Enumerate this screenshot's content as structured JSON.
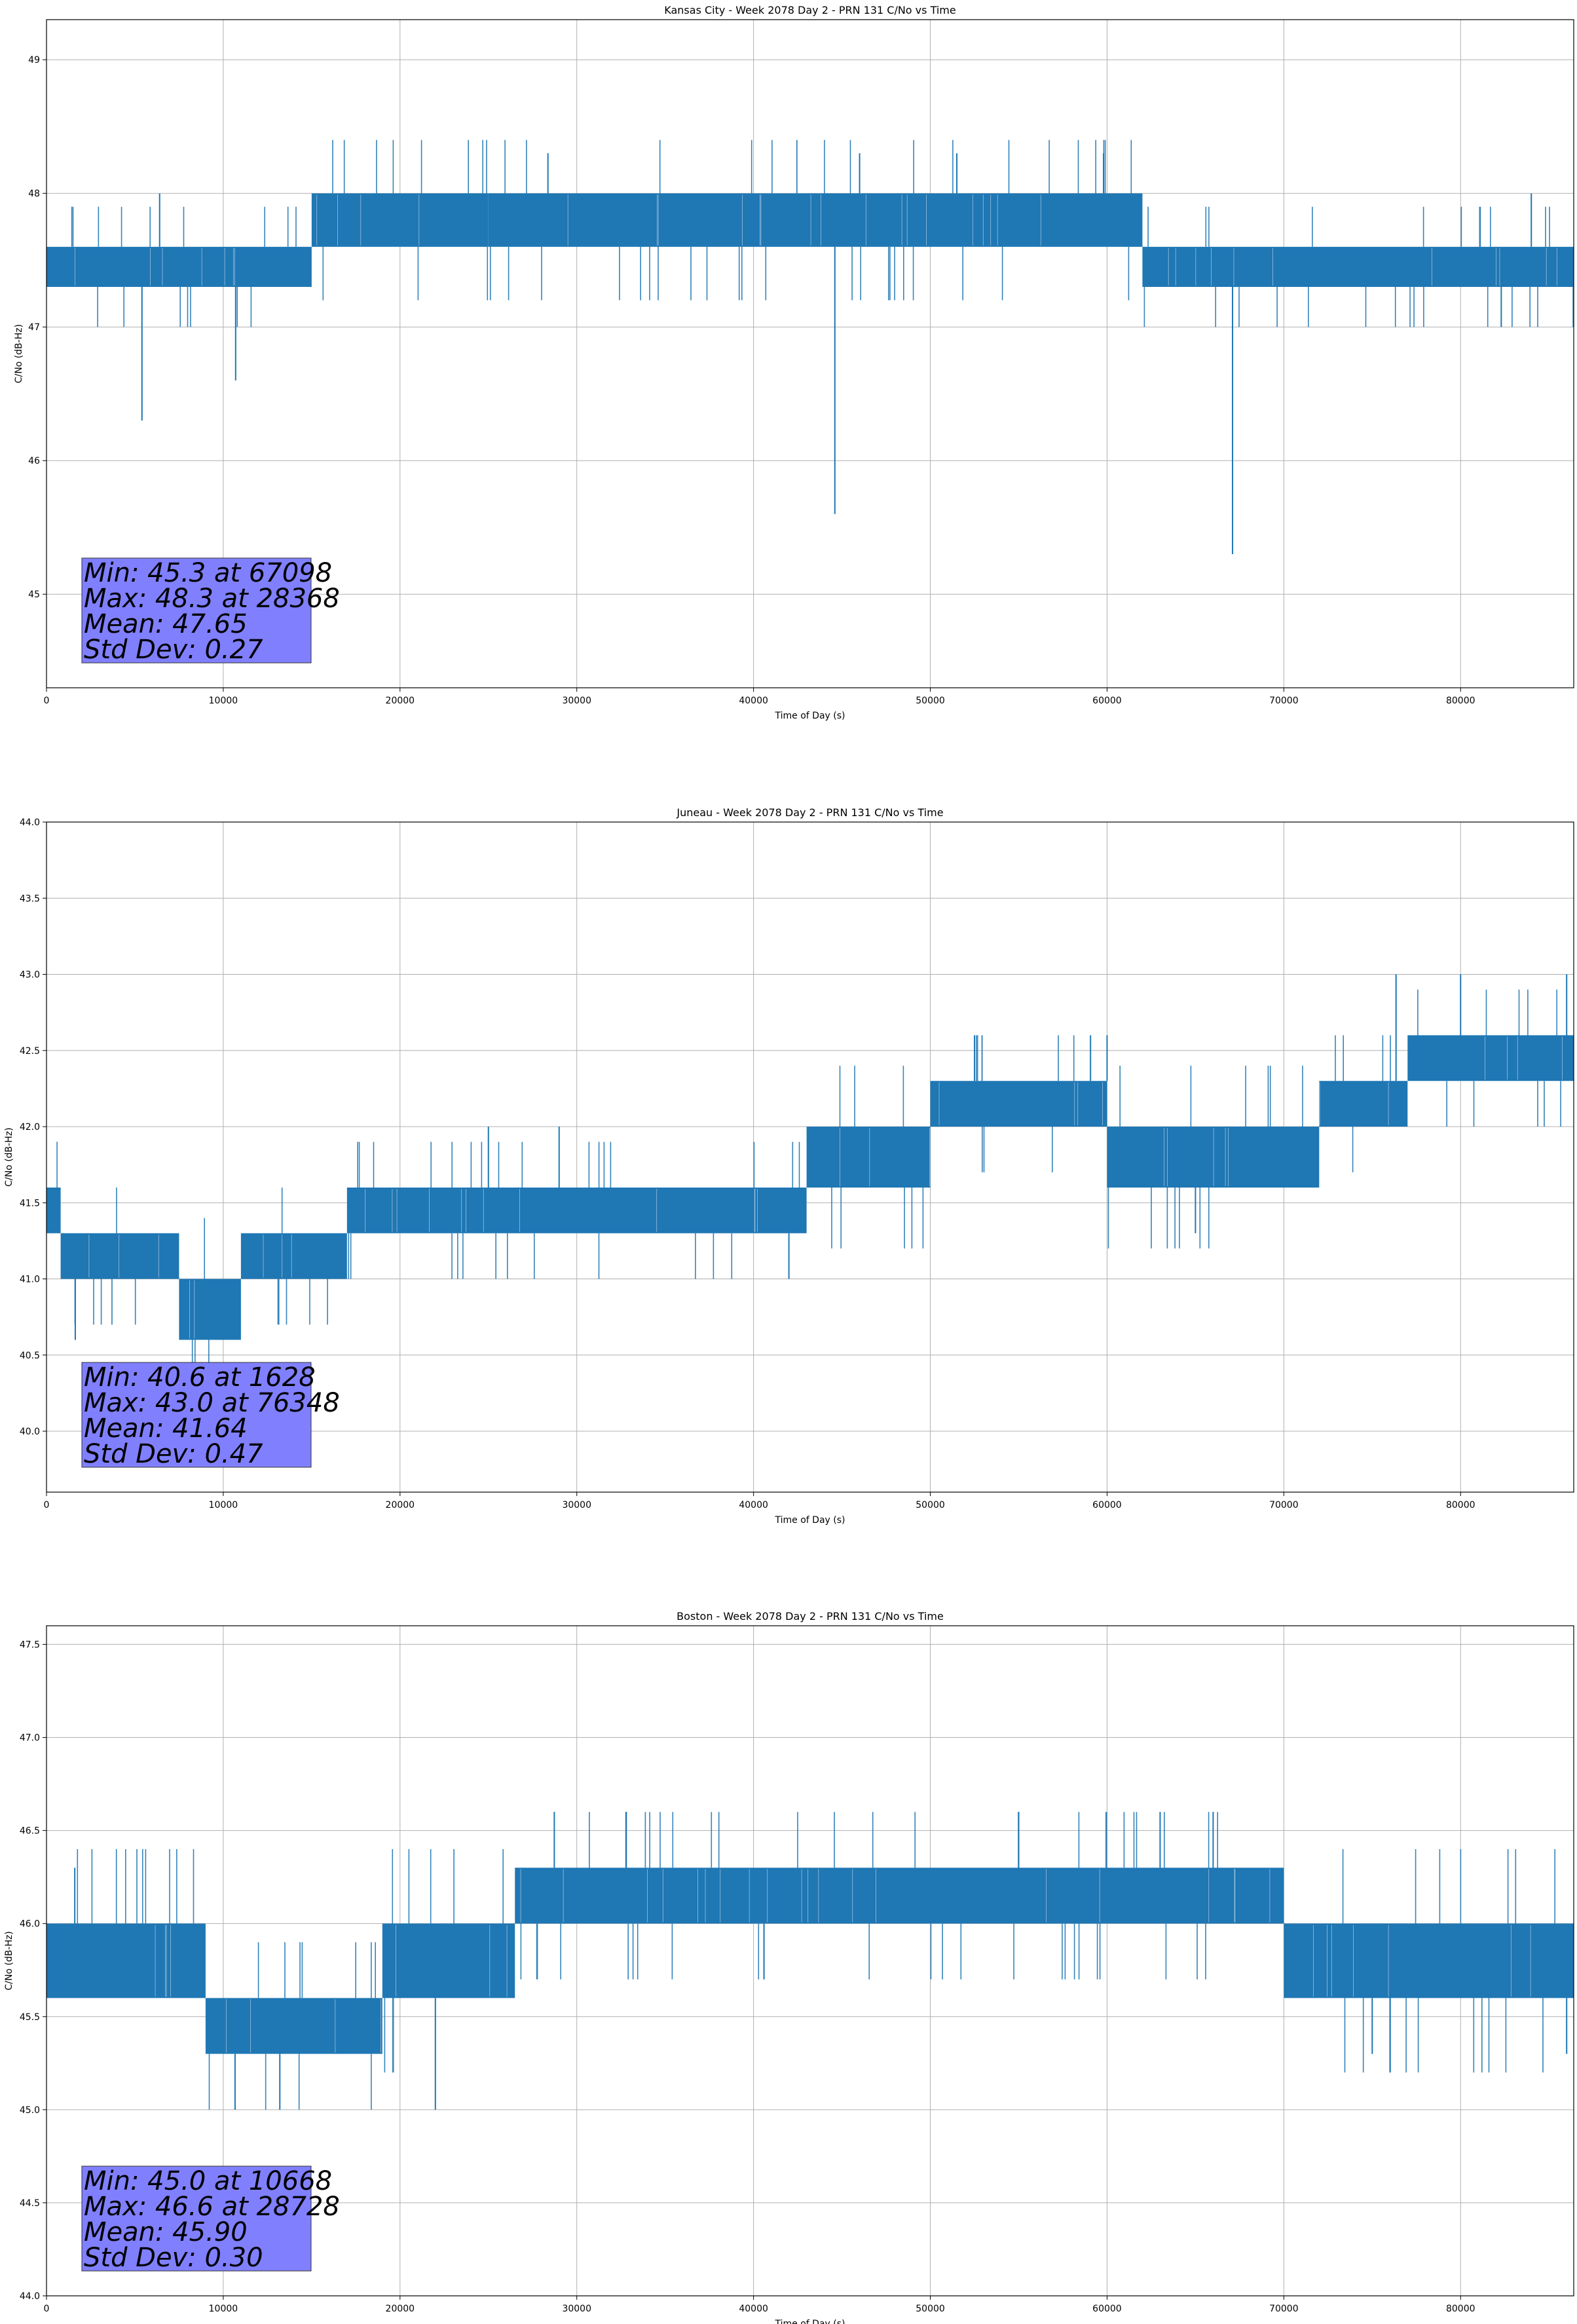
{
  "chart_data": [
    {
      "type": "line",
      "title": "Kansas City - Week 2078 Day 2 - PRN 131 C/No vs Time",
      "xlabel": "Time of Day (s)",
      "ylabel": "C/No (dB-Hz)",
      "xlim": [
        0,
        86400
      ],
      "ylim": [
        44.3,
        49.3
      ],
      "xticks": [
        0,
        10000,
        20000,
        30000,
        40000,
        50000,
        60000,
        70000,
        80000
      ],
      "yticks": [
        45,
        46,
        47,
        48,
        49
      ],
      "ytick_decimals": 0,
      "grid": true,
      "color": "#1f77b4",
      "segments": [
        {
          "x": [
            0,
            2000
          ],
          "low": 47.3,
          "high": 47.6
        },
        {
          "x": [
            2000,
            15000
          ],
          "low": 47.3,
          "high": 47.6
        },
        {
          "x": [
            15000,
            25000
          ],
          "low": 47.6,
          "high": 48.0
        },
        {
          "x": [
            25000,
            62000
          ],
          "low": 47.6,
          "high": 48.0
        },
        {
          "x": [
            62000,
            86400
          ],
          "low": 47.3,
          "high": 47.6
        }
      ],
      "spikes": [
        {
          "x": 5400,
          "y": 46.3
        },
        {
          "x": 10700,
          "y": 46.6
        },
        {
          "x": 44600,
          "y": 45.6
        },
        {
          "x": 67098,
          "y": 45.3
        },
        {
          "x": 28368,
          "y": 48.3
        },
        {
          "x": 51500,
          "y": 48.3
        },
        {
          "x": 46000,
          "y": 48.3
        },
        {
          "x": 59800,
          "y": 48.3
        },
        {
          "x": 6400,
          "y": 48.0
        },
        {
          "x": 84000,
          "y": 48.0
        },
        {
          "x": 82300,
          "y": 47.0
        }
      ],
      "stats": {
        "min": "Min: 45.3 at 67098",
        "max": "Max: 48.3 at 28368",
        "mean": "Mean: 47.65",
        "std": "Std Dev: 0.27"
      }
    },
    {
      "type": "line",
      "title": "Juneau - Week 2078 Day 2 - PRN 131 C/No vs Time",
      "xlabel": "Time of Day (s)",
      "ylabel": "C/No (dB-Hz)",
      "xlim": [
        0,
        86400
      ],
      "ylim": [
        39.6,
        44.0
      ],
      "xticks": [
        0,
        10000,
        20000,
        30000,
        40000,
        50000,
        60000,
        70000,
        80000
      ],
      "yticks": [
        40.0,
        40.5,
        41.0,
        41.5,
        42.0,
        42.5,
        43.0,
        43.5,
        44.0
      ],
      "ytick_decimals": 1,
      "grid": true,
      "color": "#1f77b4",
      "segments": [
        {
          "x": [
            0,
            800
          ],
          "low": 41.3,
          "high": 41.6
        },
        {
          "x": [
            800,
            7500
          ],
          "low": 41.0,
          "high": 41.3
        },
        {
          "x": [
            7500,
            11000
          ],
          "low": 40.6,
          "high": 41.0
        },
        {
          "x": [
            11000,
            17000
          ],
          "low": 41.0,
          "high": 41.3
        },
        {
          "x": [
            17000,
            43000
          ],
          "low": 41.3,
          "high": 41.6
        },
        {
          "x": [
            43000,
            50000
          ],
          "low": 41.6,
          "high": 42.0
        },
        {
          "x": [
            50000,
            60000
          ],
          "low": 42.0,
          "high": 42.3
        },
        {
          "x": [
            60000,
            72000
          ],
          "low": 41.6,
          "high": 42.0
        },
        {
          "x": [
            72000,
            77000
          ],
          "low": 42.0,
          "high": 42.3
        },
        {
          "x": [
            77000,
            86400
          ],
          "low": 42.3,
          "high": 42.6
        }
      ],
      "spikes": [
        {
          "x": 1628,
          "y": 40.6
        },
        {
          "x": 76348,
          "y": 43.0
        },
        {
          "x": 80000,
          "y": 43.0
        },
        {
          "x": 86000,
          "y": 43.0
        },
        {
          "x": 60000,
          "y": 42.6
        },
        {
          "x": 52500,
          "y": 42.6
        },
        {
          "x": 25000,
          "y": 42.0
        },
        {
          "x": 29000,
          "y": 42.0
        },
        {
          "x": 42000,
          "y": 41.0
        },
        {
          "x": 65000,
          "y": 41.3
        }
      ],
      "stats": {
        "min": "Min: 40.6 at 1628",
        "max": "Max: 43.0 at 76348",
        "mean": "Mean: 41.64",
        "std": "Std Dev: 0.47"
      }
    },
    {
      "type": "line",
      "title": "Boston - Week 2078 Day 2 - PRN 131 C/No vs Time",
      "xlabel": "Time of Day (s)",
      "ylabel": "C/No (dB-Hz)",
      "xlim": [
        0,
        86400
      ],
      "ylim": [
        44.0,
        47.6
      ],
      "xticks": [
        0,
        10000,
        20000,
        30000,
        40000,
        50000,
        60000,
        70000,
        80000
      ],
      "yticks": [
        44.0,
        44.5,
        45.0,
        45.5,
        46.0,
        46.5,
        47.0,
        47.5
      ],
      "ytick_decimals": 1,
      "grid": true,
      "color": "#1f77b4",
      "segments": [
        {
          "x": [
            0,
            9000
          ],
          "low": 45.6,
          "high": 46.0
        },
        {
          "x": [
            9000,
            19000
          ],
          "low": 45.3,
          "high": 45.6
        },
        {
          "x": [
            19000,
            26500
          ],
          "low": 45.6,
          "high": 46.0
        },
        {
          "x": [
            26500,
            70000
          ],
          "low": 46.0,
          "high": 46.3
        },
        {
          "x": [
            70000,
            86400
          ],
          "low": 45.6,
          "high": 46.0
        }
      ],
      "spikes": [
        {
          "x": 10668,
          "y": 45.0
        },
        {
          "x": 22000,
          "y": 45.0
        },
        {
          "x": 13200,
          "y": 45.0
        },
        {
          "x": 28728,
          "y": 46.6
        },
        {
          "x": 32800,
          "y": 46.6
        },
        {
          "x": 55000,
          "y": 46.6
        },
        {
          "x": 63000,
          "y": 46.6
        },
        {
          "x": 66000,
          "y": 46.6
        },
        {
          "x": 1600,
          "y": 46.3
        },
        {
          "x": 75000,
          "y": 45.3
        },
        {
          "x": 86000,
          "y": 45.3
        }
      ],
      "stats": {
        "min": "Min: 45.0 at 10668",
        "max": "Max: 46.6 at 28728",
        "mean": "Mean: 45.90",
        "std": "Std Dev: 0.30"
      }
    }
  ]
}
